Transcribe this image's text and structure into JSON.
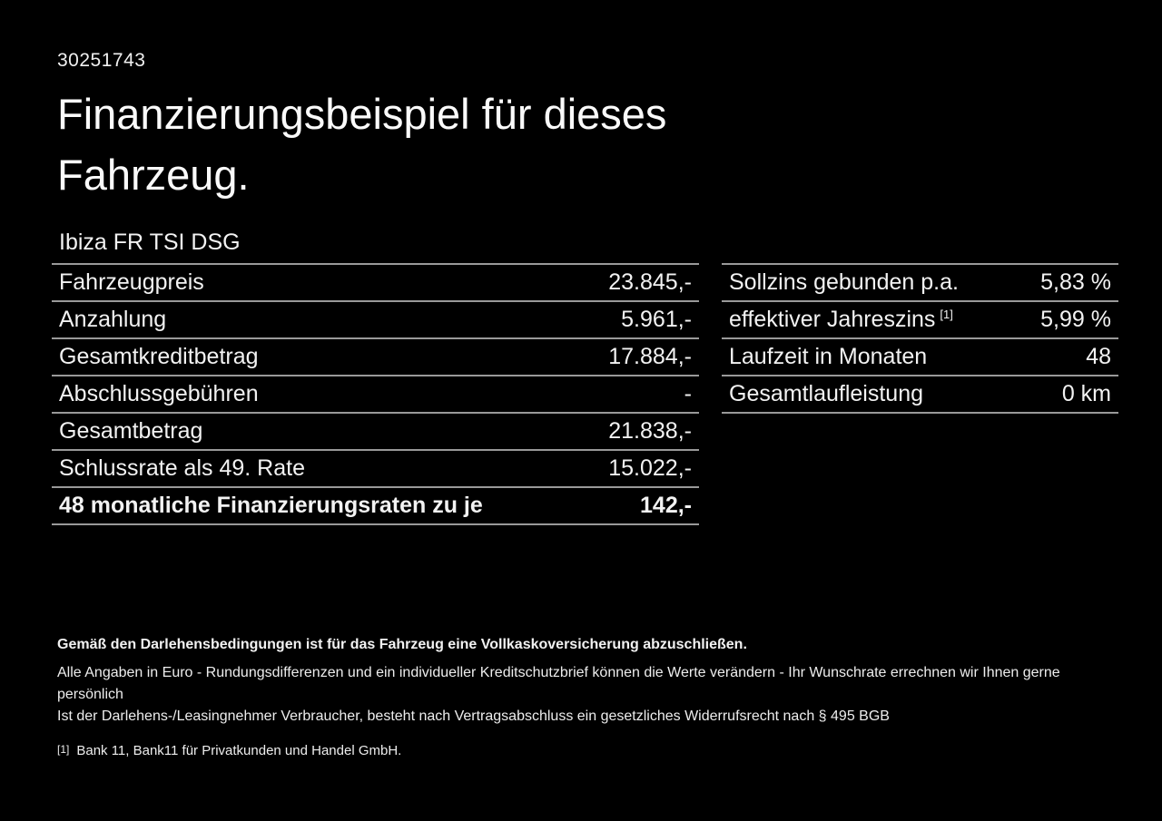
{
  "page": {
    "doc_id": "30251743",
    "title_line1": "Finanzierungsbeispiel für dieses",
    "title_line2": "Fahrzeug.",
    "vehicle_name": "Ibiza FR TSI DSG"
  },
  "left_table": {
    "rows": [
      {
        "label": "Fahrzeugpreis",
        "value": "23.845,-",
        "bold": false
      },
      {
        "label": "Anzahlung",
        "value": "5.961,-",
        "bold": false
      },
      {
        "label": "Gesamtkreditbetrag",
        "value": "17.884,-",
        "bold": false
      },
      {
        "label": "Abschlussgebühren",
        "value": "-",
        "bold": false
      },
      {
        "label": "Gesamtbetrag",
        "value": "21.838,-",
        "bold": false
      },
      {
        "label": "Schlussrate als 49. Rate",
        "value": "15.022,-",
        "bold": false
      },
      {
        "label": "48 monatliche Finanzierungsraten zu je",
        "value": "142,-",
        "bold": true
      }
    ]
  },
  "right_table": {
    "rows": [
      {
        "label": "Sollzins gebunden p.a.",
        "value": "5,83 %",
        "bold": false
      },
      {
        "label": "effektiver Jahreszins",
        "label_sup": "[1]",
        "value": "5,99 %",
        "bold": false
      },
      {
        "label": "Laufzeit in Monaten",
        "value": "48",
        "bold": false
      },
      {
        "label": "Gesamtlaufleistung",
        "value": "0 km",
        "bold": false
      }
    ]
  },
  "footer": {
    "bold_note": "Gemäß den Darlehensbedingungen ist für das Fahrzeug eine Vollkaskoversicherung abzuschließen.",
    "note_line1": "Alle Angaben in Euro - Rundungsdifferenzen und ein individueller Kreditschutzbrief können die Werte verändern - Ihr Wunschrate errechnen wir Ihnen gerne persönlich",
    "note_line2": "Ist der Darlehens-/Leasingnehmer Verbraucher, besteht nach Vertragsabschluss ein gesetzliches Widerrufsrecht nach § 495 BGB",
    "footnote_marker": "[1]",
    "footnote_text": "Bank 11, Bank11 für Privatkunden und Handel GmbH."
  },
  "colors": {
    "background": "#000000",
    "text": "#f2f2f2",
    "divider": "#999999"
  }
}
